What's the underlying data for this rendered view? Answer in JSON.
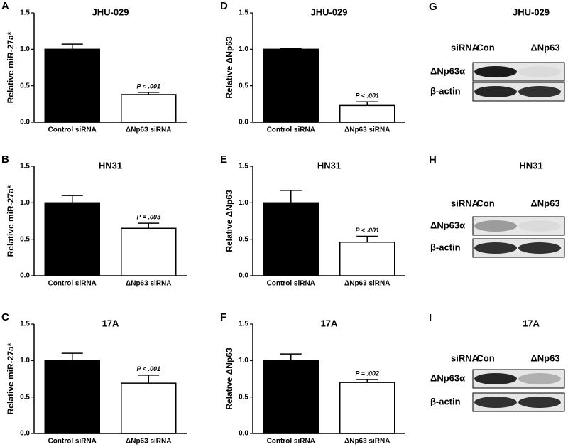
{
  "chart_data": [
    {
      "type": "bar",
      "panel": "A",
      "title": "JHU-029",
      "y_label": "Relative miR-27a*",
      "categories": [
        "Control siRNA",
        "ΔNp63 siRNA"
      ],
      "values": [
        1.0,
        0.38
      ],
      "errors": [
        0.07,
        0.03
      ],
      "value_annotations": [
        null,
        "P < .001"
      ],
      "colors": [
        "#000000",
        "#ffffff"
      ],
      "ylim": [
        0,
        1.5
      ],
      "yticks": [
        {
          "value": 0,
          "label": "0.0"
        },
        0.5,
        {
          "value": 1,
          "label": "1.0"
        },
        1.5
      ]
    },
    {
      "type": "bar",
      "panel": "B",
      "title": "HN31",
      "y_label": "Relative miR-27a*",
      "categories": [
        "Control siRNA",
        "ΔNp63 siRNA"
      ],
      "values": [
        1.0,
        0.65
      ],
      "errors": [
        0.1,
        0.07
      ],
      "value_annotations": [
        null,
        "P = .003"
      ],
      "colors": [
        "#000000",
        "#ffffff"
      ],
      "ylim": [
        0,
        1.5
      ],
      "yticks": [
        {
          "value": 0,
          "label": "0.0"
        },
        0.5,
        {
          "value": 1,
          "label": "1.0"
        },
        1.5
      ]
    },
    {
      "type": "bar",
      "panel": "C",
      "title": "17A",
      "y_label": "Relative miR-27a*",
      "categories": [
        "Control siRNA",
        "ΔNp63 siRNA"
      ],
      "values": [
        1.0,
        0.69
      ],
      "errors": [
        0.1,
        0.11
      ],
      "value_annotations": [
        null,
        "P < .001"
      ],
      "colors": [
        "#000000",
        "#ffffff"
      ],
      "ylim": [
        0,
        1.5
      ],
      "yticks": [
        {
          "value": 0,
          "label": "0.0"
        },
        0.5,
        {
          "value": 1,
          "label": "1.0"
        },
        1.5
      ]
    },
    {
      "type": "bar",
      "panel": "D",
      "title": "JHU-029",
      "y_label": "Relative ΔNp63",
      "categories": [
        "Control siRNA",
        "ΔNp63 siRNA"
      ],
      "values": [
        1.0,
        0.23
      ],
      "errors": [
        0.01,
        0.05
      ],
      "value_annotations": [
        null,
        "P < .001"
      ],
      "colors": [
        "#000000",
        "#ffffff"
      ],
      "ylim": [
        0,
        1.5
      ],
      "yticks": [
        {
          "value": 0,
          "label": "0.0"
        },
        0.5,
        {
          "value": 1,
          "label": "1.0"
        },
        1.5
      ]
    },
    {
      "type": "bar",
      "panel": "E",
      "title": "HN31",
      "y_label": "Relative ΔNp63",
      "categories": [
        "Control siRNA",
        "ΔNp63 siRNA"
      ],
      "values": [
        1.0,
        0.46
      ],
      "errors": [
        0.17,
        0.08
      ],
      "value_annotations": [
        null,
        "P < .001"
      ],
      "colors": [
        "#000000",
        "#ffffff"
      ],
      "ylim": [
        0,
        1.5
      ],
      "yticks": [
        {
          "value": 0,
          "label": "0.0"
        },
        0.5,
        {
          "value": 1,
          "label": "1.0"
        },
        1.5
      ]
    },
    {
      "type": "bar",
      "panel": "F",
      "title": "17A",
      "y_label": "Relative ΔNp63",
      "categories": [
        "Control siRNA",
        "ΔNp63 siRNA"
      ],
      "values": [
        1.0,
        0.7
      ],
      "errors": [
        0.09,
        0.04
      ],
      "value_annotations": [
        null,
        "P = .002"
      ],
      "colors": [
        "#000000",
        "#ffffff"
      ],
      "ylim": [
        0,
        1.5
      ],
      "yticks": [
        {
          "value": 0,
          "label": "0.0"
        },
        0.5,
        {
          "value": 1,
          "label": "1.0"
        },
        1.5
      ]
    }
  ],
  "blots": [
    {
      "panel": "G",
      "title": "JHU-029",
      "header": "siRNA",
      "lanes": [
        "Con",
        "ΔNp63"
      ],
      "rows": [
        "ΔNp63α",
        "β-actin"
      ]
    },
    {
      "panel": "H",
      "title": "HN31",
      "header": "siRNA",
      "lanes": [
        "Con",
        "ΔNp63"
      ],
      "rows": [
        "ΔNp63α",
        "β-actin"
      ]
    },
    {
      "panel": "I",
      "title": "17A",
      "header": "siRNA",
      "lanes": [
        "Con",
        "ΔNp63"
      ],
      "rows": [
        "ΔNp63α",
        "β-actin"
      ]
    }
  ]
}
